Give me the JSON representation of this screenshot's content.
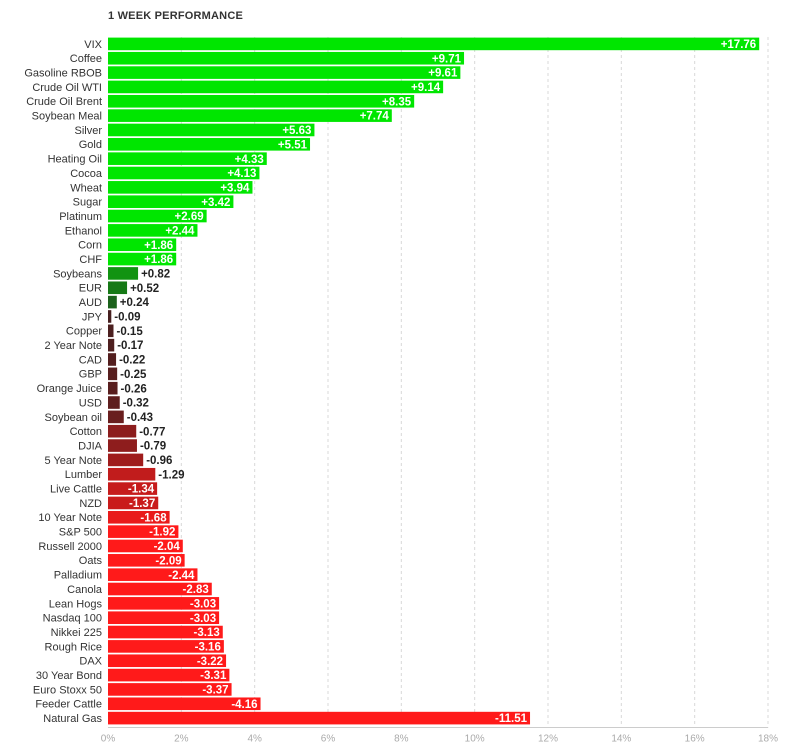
{
  "chart_data": {
    "type": "bar",
    "orientation": "horizontal",
    "title": "1 WEEK PERFORMANCE",
    "xlabel": "",
    "ylabel": "",
    "xlim": [
      0,
      18
    ],
    "x_ticks": [
      "0%",
      "2%",
      "4%",
      "6%",
      "8%",
      "10%",
      "12%",
      "14%",
      "16%",
      "18%"
    ],
    "grid": true,
    "value_display": "absolute",
    "categories": [
      "VIX",
      "Coffee",
      "Gasoline RBOB",
      "Crude Oil WTI",
      "Crude Oil Brent",
      "Soybean Meal",
      "Silver",
      "Gold",
      "Heating Oil",
      "Cocoa",
      "Wheat",
      "Sugar",
      "Platinum",
      "Ethanol",
      "Corn",
      "CHF",
      "Soybeans",
      "EUR",
      "AUD",
      "JPY",
      "Copper",
      "2 Year Note",
      "CAD",
      "GBP",
      "Orange Juice",
      "USD",
      "Soybean oil",
      "Cotton",
      "DJIA",
      "5 Year Note",
      "Lumber",
      "Live Cattle",
      "NZD",
      "10 Year Note",
      "S&P 500",
      "Russell 2000",
      "Oats",
      "Palladium",
      "Canola",
      "Lean Hogs",
      "Nasdaq 100",
      "Nikkei 225",
      "Rough Rice",
      "DAX",
      "30 Year Bond",
      "Euro Stoxx 50",
      "Feeder Cattle",
      "Natural Gas"
    ],
    "values": [
      17.76,
      9.71,
      9.61,
      9.14,
      8.35,
      7.74,
      5.63,
      5.51,
      4.33,
      4.13,
      3.94,
      3.42,
      2.69,
      2.44,
      1.86,
      1.86,
      0.82,
      0.52,
      0.24,
      -0.09,
      -0.15,
      -0.17,
      -0.22,
      -0.25,
      -0.26,
      -0.32,
      -0.43,
      -0.77,
      -0.79,
      -0.96,
      -1.29,
      -1.34,
      -1.37,
      -1.68,
      -1.92,
      -2.04,
      -2.09,
      -2.44,
      -2.83,
      -3.03,
      -3.03,
      -3.13,
      -3.16,
      -3.22,
      -3.31,
      -3.37,
      -4.16,
      -11.51
    ],
    "value_labels": [
      "+17.76",
      "+9.71",
      "+9.61",
      "+9.14",
      "+8.35",
      "+7.74",
      "+5.63",
      "+5.51",
      "+4.33",
      "+4.13",
      "+3.94",
      "+3.42",
      "+2.69",
      "+2.44",
      "+1.86",
      "+1.86",
      "+0.82",
      "+0.52",
      "+0.24",
      "-0.09",
      "-0.15",
      "-0.17",
      "-0.22",
      "-0.25",
      "-0.26",
      "-0.32",
      "-0.43",
      "-0.77",
      "-0.79",
      "-0.96",
      "-1.29",
      "-1.34",
      "-1.37",
      "-1.68",
      "-1.92",
      "-2.04",
      "-2.09",
      "-2.44",
      "-2.83",
      "-3.03",
      "-3.03",
      "-3.13",
      "-3.16",
      "-3.22",
      "-3.31",
      "-3.37",
      "-4.16",
      "-11.51"
    ],
    "colors": {
      "positive_strong": "#00e600",
      "positive_weak": "#1f4d1f",
      "negative_weak": "#3d1f1f",
      "negative_strong": "#ff1a1a",
      "label_light": "#ffffff",
      "label_dark": "#222222"
    }
  }
}
